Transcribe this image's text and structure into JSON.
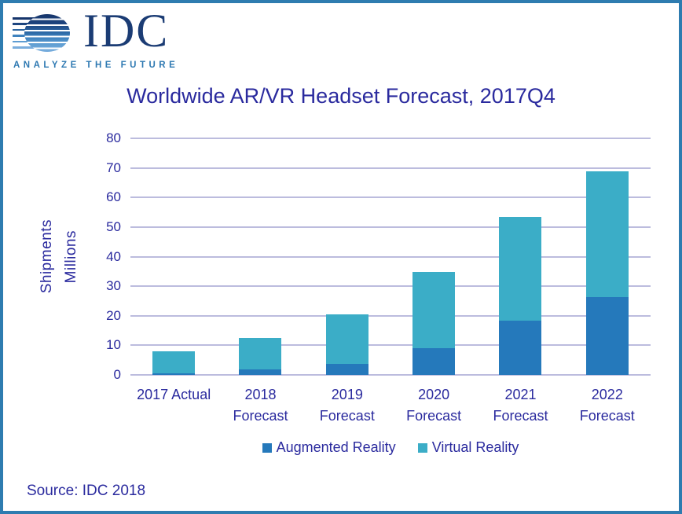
{
  "logo": {
    "brand": "IDC",
    "tagline": "ANALYZE THE FUTURE",
    "navy": "#1B3C74",
    "tagline_blue": "#2E79B2"
  },
  "chart": {
    "title": "Worldwide AR/VR Headset Forecast, 2017Q4",
    "y_axis_label_line1": "Shipments",
    "y_axis_label_line2": "Millions"
  },
  "source": "Source: IDC 2018",
  "colors": {
    "augmented_reality": "#2579BB",
    "virtual_reality": "#3BADC7",
    "gridline": "#BCBCDE",
    "text_navy": "#2A2A9E",
    "frame_blue": "#2E7CB0"
  },
  "chart_data": {
    "type": "bar",
    "stacked": true,
    "title": "Worldwide AR/VR Headset Forecast, 2017Q4",
    "ylabel": "Shipments Millions",
    "ylim": [
      0,
      80
    ],
    "ytick_step": 10,
    "grid": true,
    "legend_position": "bottom",
    "categories": [
      "2017 Actual",
      "2018 Forecast",
      "2019 Forecast",
      "2020 Forecast",
      "2021 Forecast",
      "2022 Forecast"
    ],
    "category_label_lines": [
      [
        "2017 Actual",
        ""
      ],
      [
        "2018",
        "Forecast"
      ],
      [
        "2019",
        "Forecast"
      ],
      [
        "2020",
        "Forecast"
      ],
      [
        "2021",
        "Forecast"
      ],
      [
        "2022",
        "Forecast"
      ]
    ],
    "series": [
      {
        "name": "Augmented Reality",
        "color": "#2579BB",
        "values": [
          0.5,
          1.8,
          3.6,
          9.0,
          18.4,
          26.2
        ]
      },
      {
        "name": "Virtual Reality",
        "color": "#3BADC7",
        "values": [
          7.6,
          10.6,
          16.9,
          25.7,
          34.9,
          42.7
        ]
      }
    ],
    "totals": [
      8.1,
      12.4,
      20.5,
      34.7,
      53.3,
      68.9
    ]
  }
}
